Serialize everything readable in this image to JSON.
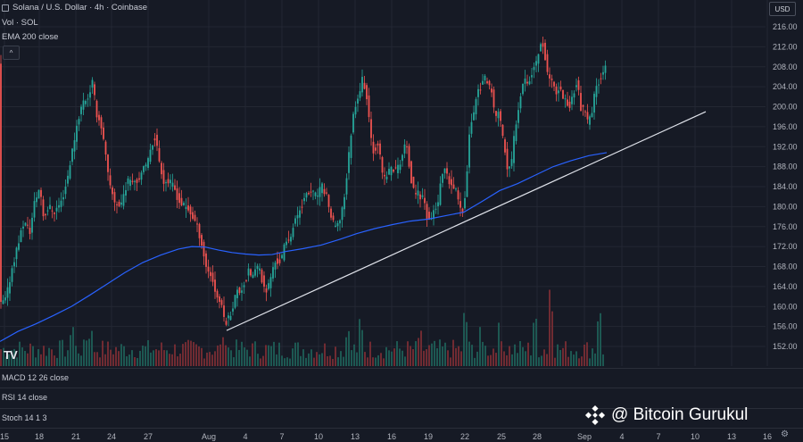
{
  "legend": {
    "symbol": "Solana / U.S. Dollar · 4h · Coinbase",
    "volume": "Vol · SOL",
    "ema": "EMA 200 close",
    "collapse": "^"
  },
  "currency": "USD",
  "panes": {
    "macd": "MACD 12 26 close",
    "rsi": "RSI 14 close",
    "stoch": "Stoch 14 1 3"
  },
  "logo": "TV",
  "watermark": "@ Bitcoin Gurukul",
  "colors": {
    "up": "#26a69a",
    "down": "#ef5350",
    "ema": "#2962ff",
    "trend": "#e0e3eb",
    "grid": "#232733",
    "text": "#b2b5be",
    "background": "#161a25"
  },
  "chart_data": {
    "type": "candlestick",
    "title": "Solana / U.S. Dollar · 4h · Coinbase",
    "y_axis": {
      "ylim": [
        150,
        218
      ],
      "ticks": [
        "216.00",
        "212.00",
        "208.00",
        "204.00",
        "200.00",
        "196.00",
        "192.00",
        "188.00",
        "184.00",
        "180.00",
        "176.00",
        "172.00",
        "168.00",
        "164.00",
        "160.00",
        "156.00",
        "152.00"
      ]
    },
    "x_axis": {
      "ticks": [
        "15",
        "18",
        "21",
        "24",
        "27",
        "Aug",
        "4",
        "7",
        "10",
        "13",
        "16",
        "19",
        "22",
        "25",
        "28",
        "Sep",
        "4",
        "7",
        "10",
        "13",
        "16"
      ]
    },
    "price_path": [
      [
        0,
        160
      ],
      [
        8,
        161.5
      ],
      [
        15,
        168
      ],
      [
        22,
        173
      ],
      [
        28,
        177
      ],
      [
        35,
        175
      ],
      [
        40,
        181
      ],
      [
        46,
        184
      ],
      [
        50,
        178
      ],
      [
        56,
        180
      ],
      [
        62,
        179
      ],
      [
        70,
        181
      ],
      [
        76,
        185
      ],
      [
        82,
        191
      ],
      [
        88,
        197
      ],
      [
        94,
        201
      ],
      [
        100,
        202
      ],
      [
        105,
        205
      ],
      [
        109,
        199
      ],
      [
        115,
        196
      ],
      [
        119,
        191
      ],
      [
        124,
        184
      ],
      [
        130,
        181
      ],
      [
        136,
        180
      ],
      [
        142,
        184
      ],
      [
        148,
        186
      ],
      [
        154,
        185
      ],
      [
        160,
        187
      ],
      [
        166,
        188
      ],
      [
        170,
        192
      ],
      [
        175,
        194
      ],
      [
        180,
        189
      ],
      [
        185,
        185
      ],
      [
        190,
        185
      ],
      [
        196,
        184
      ],
      [
        202,
        181
      ],
      [
        208,
        180
      ],
      [
        214,
        179
      ],
      [
        220,
        177
      ],
      [
        224,
        175
      ],
      [
        228,
        172
      ],
      [
        232,
        168
      ],
      [
        236,
        167
      ],
      [
        240,
        165
      ],
      [
        244,
        162
      ],
      [
        248,
        161
      ],
      [
        252,
        158
      ],
      [
        255,
        157
      ],
      [
        258,
        158
      ],
      [
        262,
        160
      ],
      [
        266,
        163
      ],
      [
        270,
        163
      ],
      [
        276,
        165
      ],
      [
        280,
        167
      ],
      [
        284,
        166
      ],
      [
        290,
        168
      ],
      [
        294,
        166
      ],
      [
        298,
        163
      ],
      [
        302,
        164
      ],
      [
        306,
        167
      ],
      [
        310,
        169
      ],
      [
        316,
        169
      ],
      [
        320,
        172
      ],
      [
        326,
        174
      ],
      [
        332,
        177
      ],
      [
        338,
        180
      ],
      [
        344,
        182
      ],
      [
        350,
        183
      ],
      [
        356,
        182
      ],
      [
        362,
        184
      ],
      [
        368,
        182
      ],
      [
        372,
        178
      ],
      [
        376,
        176
      ],
      [
        380,
        176
      ],
      [
        384,
        179
      ],
      [
        388,
        183
      ],
      [
        392,
        190
      ],
      [
        396,
        197
      ],
      [
        400,
        201
      ],
      [
        404,
        203
      ],
      [
        408,
        206
      ],
      [
        412,
        202
      ],
      [
        416,
        195
      ],
      [
        420,
        191
      ],
      [
        425,
        193
      ],
      [
        430,
        186
      ],
      [
        434,
        186
      ],
      [
        440,
        188
      ],
      [
        444,
        187
      ],
      [
        450,
        189
      ],
      [
        456,
        193
      ],
      [
        460,
        188
      ],
      [
        464,
        183
      ],
      [
        468,
        183
      ],
      [
        472,
        182
      ],
      [
        476,
        182
      ],
      [
        480,
        178
      ],
      [
        484,
        177
      ],
      [
        488,
        180
      ],
      [
        492,
        180
      ],
      [
        496,
        186
      ],
      [
        500,
        187
      ],
      [
        504,
        185
      ],
      [
        508,
        184
      ],
      [
        512,
        183
      ],
      [
        516,
        181
      ],
      [
        520,
        179
      ],
      [
        524,
        185
      ],
      [
        528,
        196
      ],
      [
        532,
        199
      ],
      [
        536,
        203
      ],
      [
        540,
        204
      ],
      [
        544,
        206
      ],
      [
        548,
        204
      ],
      [
        552,
        203
      ],
      [
        556,
        198
      ],
      [
        560,
        199
      ],
      [
        566,
        193
      ],
      [
        570,
        187
      ],
      [
        574,
        188
      ],
      [
        578,
        195
      ],
      [
        584,
        202
      ],
      [
        588,
        206
      ],
      [
        594,
        205
      ],
      [
        600,
        208
      ],
      [
        604,
        210
      ],
      [
        608,
        214
      ],
      [
        612,
        210
      ],
      [
        616,
        206
      ],
      [
        620,
        205
      ],
      [
        624,
        202
      ],
      [
        628,
        204
      ],
      [
        632,
        202
      ],
      [
        636,
        201
      ],
      [
        640,
        200
      ],
      [
        644,
        203
      ],
      [
        648,
        205
      ],
      [
        652,
        200
      ],
      [
        656,
        199
      ],
      [
        660,
        197
      ],
      [
        664,
        198
      ],
      [
        668,
        203
      ],
      [
        672,
        205
      ],
      [
        676,
        207
      ],
      [
        679,
        208
      ]
    ],
    "ema_200": [
      [
        0,
        153
      ],
      [
        20,
        155
      ],
      [
        40,
        156.5
      ],
      [
        60,
        158.2
      ],
      [
        80,
        160
      ],
      [
        100,
        162.2
      ],
      [
        120,
        164.5
      ],
      [
        140,
        166.8
      ],
      [
        160,
        168.8
      ],
      [
        180,
        170.3
      ],
      [
        200,
        171.5
      ],
      [
        215,
        172
      ],
      [
        230,
        171.9
      ],
      [
        245,
        171.3
      ],
      [
        260,
        170.8
      ],
      [
        275,
        170.5
      ],
      [
        290,
        170.3
      ],
      [
        305,
        170.4
      ],
      [
        320,
        171
      ],
      [
        340,
        171.6
      ],
      [
        360,
        172.3
      ],
      [
        380,
        173.4
      ],
      [
        400,
        174.6
      ],
      [
        420,
        175.6
      ],
      [
        440,
        176.4
      ],
      [
        460,
        177.1
      ],
      [
        480,
        177.5
      ],
      [
        500,
        178.2
      ],
      [
        520,
        178.9
      ],
      [
        540,
        181
      ],
      [
        560,
        183.2
      ],
      [
        580,
        184.6
      ],
      [
        600,
        186.3
      ],
      [
        620,
        188
      ],
      [
        640,
        189.2
      ],
      [
        660,
        190.2
      ],
      [
        680,
        190.8
      ]
    ],
    "trendline": {
      "from": {
        "x_index": "Aug 3",
        "y": 155.2
      },
      "to": {
        "x_index": "Sep 7",
        "y": 199
      }
    },
    "series": [
      {
        "name": "Vol · SOL",
        "type": "volume"
      },
      {
        "name": "EMA 200 close",
        "type": "line"
      }
    ],
    "grid": true,
    "legend_placement": "top-left"
  }
}
